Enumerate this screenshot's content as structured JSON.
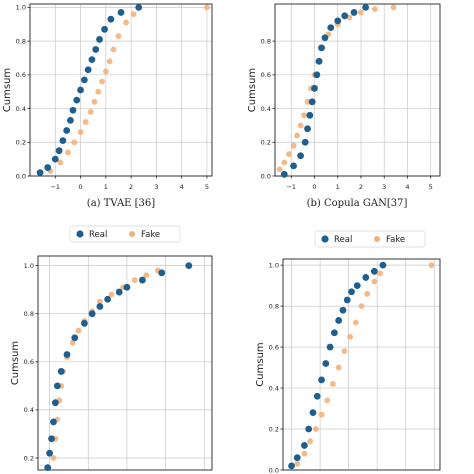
{
  "colors": {
    "real": "#1f5f8f",
    "fake": "#f4b07a",
    "grid": "#c8c8c8"
  },
  "chart_data": [
    {
      "type": "scatter",
      "caption": "(a) TVAE [36]",
      "ylabel": "Cumsum",
      "xlim": [
        -2,
        5.2
      ],
      "ylim": [
        0,
        1.02
      ],
      "xticks": [
        -1,
        0,
        1,
        2,
        3,
        4,
        5
      ],
      "xtick_labels": [
        "−1",
        "0",
        "1",
        "2",
        "3",
        "4",
        "5"
      ],
      "yticks": [
        0,
        0.2,
        0.4,
        0.6,
        0.8,
        1.0
      ],
      "ytick_labels": [
        "0.0",
        "0.2",
        "0.4",
        "0.6",
        "0.8",
        "1.0"
      ],
      "legend": "none",
      "series": [
        {
          "name": "Real",
          "x": [
            -1.6,
            -1.3,
            -1.0,
            -0.85,
            -0.7,
            -0.55,
            -0.4,
            -0.3,
            -0.15,
            0.0,
            0.15,
            0.3,
            0.45,
            0.6,
            0.75,
            0.95,
            1.2,
            1.6,
            2.3
          ],
          "y": [
            0.02,
            0.05,
            0.1,
            0.15,
            0.21,
            0.27,
            0.33,
            0.39,
            0.45,
            0.51,
            0.57,
            0.63,
            0.69,
            0.75,
            0.81,
            0.87,
            0.93,
            0.97,
            1.0
          ]
        },
        {
          "name": "Fake",
          "x": [
            -1.2,
            -0.8,
            -0.5,
            -0.25,
            0.0,
            0.2,
            0.4,
            0.55,
            0.7,
            0.85,
            1.0,
            1.15,
            1.3,
            1.5,
            1.8,
            2.1,
            5.0
          ],
          "y": [
            0.03,
            0.08,
            0.14,
            0.2,
            0.26,
            0.32,
            0.38,
            0.44,
            0.5,
            0.56,
            0.62,
            0.68,
            0.75,
            0.83,
            0.91,
            0.96,
            1.0
          ]
        }
      ]
    },
    {
      "type": "scatter",
      "caption": "(b) Copula GAN[37]",
      "ylabel": "Cumsum",
      "xlim": [
        -1.7,
        5.4
      ],
      "ylim": [
        0,
        1.02
      ],
      "xticks": [
        -1,
        0,
        1,
        2,
        3,
        4,
        5
      ],
      "xtick_labels": [
        "−1",
        "0",
        "1",
        "2",
        "3",
        "4",
        "5"
      ],
      "yticks": [
        0,
        0.2,
        0.4,
        0.6,
        0.8
      ],
      "ytick_labels": [
        "0.0",
        "0.2",
        "0.4",
        "0.6",
        "0.8"
      ],
      "legend": "none",
      "series": [
        {
          "name": "Real",
          "x": [
            -1.3,
            -0.9,
            -0.6,
            -0.4,
            -0.3,
            -0.2,
            -0.1,
            0.0,
            0.1,
            0.2,
            0.3,
            0.45,
            0.7,
            1.0,
            1.3,
            1.7,
            2.2
          ],
          "y": [
            0.01,
            0.06,
            0.12,
            0.2,
            0.28,
            0.36,
            0.44,
            0.52,
            0.6,
            0.68,
            0.76,
            0.82,
            0.88,
            0.92,
            0.95,
            0.97,
            1.0
          ]
        },
        {
          "name": "Fake",
          "x": [
            -1.5,
            -1.3,
            -1.1,
            -0.9,
            -0.75,
            -0.6,
            -0.45,
            -0.3,
            -0.15,
            0.0,
            0.15,
            0.35,
            0.6,
            1.0,
            1.5,
            2.0,
            2.6,
            3.4
          ],
          "y": [
            0.04,
            0.08,
            0.13,
            0.18,
            0.24,
            0.3,
            0.36,
            0.44,
            0.52,
            0.6,
            0.68,
            0.76,
            0.84,
            0.9,
            0.94,
            0.97,
            0.99,
            1.0
          ]
        }
      ]
    },
    {
      "type": "scatter",
      "caption": "",
      "ylabel": "Cumsum",
      "xlim": [
        -0.3,
        4.2
      ],
      "ylim": [
        0.15,
        1.04
      ],
      "xticks": [
        0,
        1,
        2,
        3,
        4
      ],
      "xtick_labels": [],
      "yticks": [
        0.2,
        0.4,
        0.6,
        0.8,
        1.0
      ],
      "ytick_labels": [
        "0.2",
        "0.4",
        "0.6",
        "0.8",
        "1.0"
      ],
      "legend": "top-center",
      "series": [
        {
          "name": "Real",
          "x": [
            -0.05,
            0.0,
            0.05,
            0.1,
            0.15,
            0.2,
            0.3,
            0.45,
            0.65,
            0.9,
            1.1,
            1.3,
            1.5,
            1.8,
            2.0,
            2.4,
            2.9,
            3.6
          ],
          "y": [
            0.16,
            0.22,
            0.28,
            0.35,
            0.43,
            0.5,
            0.56,
            0.63,
            0.7,
            0.76,
            0.8,
            0.83,
            0.86,
            0.89,
            0.91,
            0.94,
            0.97,
            1.0
          ]
        },
        {
          "name": "Fake",
          "x": [
            0.1,
            0.15,
            0.2,
            0.25,
            0.3,
            0.35,
            0.45,
            0.6,
            0.75,
            0.9,
            1.1,
            1.3,
            1.6,
            1.9,
            2.2,
            2.5,
            2.8
          ],
          "y": [
            0.2,
            0.28,
            0.36,
            0.44,
            0.5,
            0.56,
            0.62,
            0.68,
            0.73,
            0.77,
            0.81,
            0.85,
            0.88,
            0.91,
            0.94,
            0.96,
            0.98
          ]
        }
      ]
    },
    {
      "type": "scatter",
      "caption": "",
      "ylabel": "Cumsum",
      "xlim": [
        -0.3,
        5.2
      ],
      "ylim": [
        0,
        1.03
      ],
      "xticks": [
        0,
        1,
        2,
        3,
        4,
        5
      ],
      "xtick_labels": [],
      "yticks": [
        0,
        0.2,
        0.4,
        0.6,
        0.8,
        1.0
      ],
      "ytick_labels": [
        "0.0",
        "0.2",
        "0.4",
        "0.6",
        "0.8",
        "1.0"
      ],
      "legend": "top-center",
      "series": [
        {
          "name": "Real",
          "x": [
            0.0,
            0.2,
            0.45,
            0.6,
            0.75,
            0.9,
            1.05,
            1.2,
            1.35,
            1.5,
            1.65,
            1.8,
            1.95,
            2.1,
            2.3,
            2.6,
            2.9,
            3.2
          ],
          "y": [
            0.02,
            0.06,
            0.12,
            0.2,
            0.28,
            0.36,
            0.44,
            0.52,
            0.6,
            0.67,
            0.73,
            0.78,
            0.83,
            0.87,
            0.9,
            0.94,
            0.97,
            1.0
          ]
        },
        {
          "name": "Fake",
          "x": [
            0.2,
            0.45,
            0.65,
            0.85,
            1.05,
            1.25,
            1.45,
            1.65,
            1.85,
            2.05,
            2.25,
            2.45,
            2.65,
            2.9,
            3.1,
            4.9
          ],
          "y": [
            0.03,
            0.08,
            0.14,
            0.2,
            0.27,
            0.34,
            0.42,
            0.5,
            0.58,
            0.65,
            0.72,
            0.8,
            0.86,
            0.92,
            0.96,
            1.0
          ]
        }
      ]
    }
  ]
}
